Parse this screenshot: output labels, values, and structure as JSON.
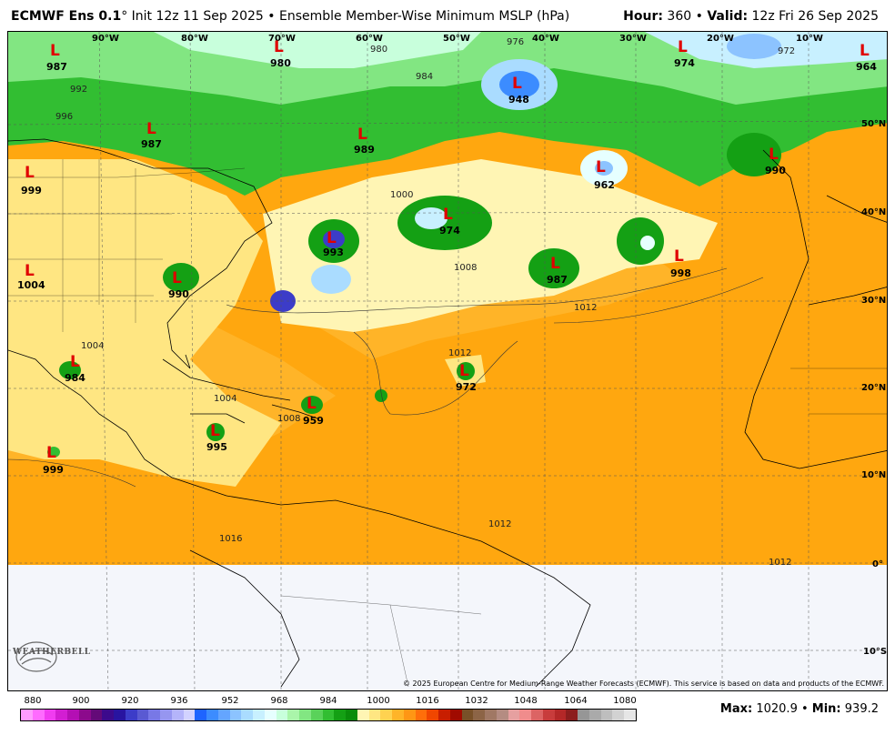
{
  "header": {
    "model": "ECMWF Ens 0.1",
    "init_text": "° Init 12z 11 Sep 2025 • Ensemble Member-Wise Minimum MSLP (hPa)",
    "hour_label": "Hour:",
    "hour_value": " 360 • ",
    "valid_label": "Valid:",
    "valid_value": " 12z Fri 26 Sep 2025"
  },
  "lon_labels": [
    "90°W",
    "80°W",
    "70°W",
    "60°W",
    "50°W",
    "40°W",
    "30°W",
    "20°W",
    "10°W"
  ],
  "lat_labels": [
    "50°N",
    "40°N",
    "30°N",
    "20°N",
    "10°N",
    "0°",
    "10°S"
  ],
  "lows": [
    {
      "label": "L",
      "value": "987"
    },
    {
      "label": "L",
      "value": "980"
    },
    {
      "label": "L",
      "value": "948"
    },
    {
      "label": "L",
      "value": "974"
    },
    {
      "label": "L",
      "value": "964"
    },
    {
      "label": "L",
      "value": "987"
    },
    {
      "label": "L",
      "value": "989"
    },
    {
      "label": "L",
      "value": "999"
    },
    {
      "label": "L",
      "value": "962"
    },
    {
      "label": "L",
      "value": "990"
    },
    {
      "label": "L",
      "value": "974"
    },
    {
      "label": "L",
      "value": "993"
    },
    {
      "label": "L",
      "value": "987"
    },
    {
      "label": "L",
      "value": "998"
    },
    {
      "label": "L",
      "value": "1004"
    },
    {
      "label": "L",
      "value": "990"
    },
    {
      "label": "L",
      "value": "984"
    },
    {
      "label": "L",
      "value": "972"
    },
    {
      "label": "L",
      "value": "959"
    },
    {
      "label": "L",
      "value": "995"
    },
    {
      "label": "L",
      "value": "999"
    }
  ],
  "contour_labels": [
    "1012",
    "1012",
    "1012",
    "1012",
    "1008",
    "1008",
    "1004",
    "1004",
    "1000",
    "996",
    "992",
    "984",
    "980",
    "976",
    "972",
    "1016"
  ],
  "copyright": "© 2025 European Centre for Medium-Range Weather Forecasts (ECMWF). This service is based on data and products of the ECMWF.",
  "logo": "WEATHERBELL",
  "colorbar": {
    "ticks": [
      "880",
      "900",
      "920",
      "936",
      "952",
      "968",
      "984",
      "1000",
      "1016",
      "1032",
      "1048",
      "1064",
      "1080"
    ],
    "colors": [
      "#ff9cff",
      "#ff6bff",
      "#f03cf0",
      "#d21ed2",
      "#b40fb4",
      "#8c0a8c",
      "#640a78",
      "#3c0a8c",
      "#2814a0",
      "#3c3cc8",
      "#5a5ad2",
      "#7878e6",
      "#9696f0",
      "#b4b4fa",
      "#d2d2ff",
      "#1e64ff",
      "#3c8cff",
      "#64a5ff",
      "#8cc3ff",
      "#aadcff",
      "#c8f0ff",
      "#e6ffff",
      "#c8ffdc",
      "#aaf5aa",
      "#82e682",
      "#5ad25a",
      "#32be32",
      "#14a014",
      "#0a8c0a",
      "#fff5b4",
      "#ffe682",
      "#ffd250",
      "#ffb428",
      "#ff9614",
      "#ff6e0a",
      "#f04600",
      "#c81e00",
      "#a00a00",
      "#785028",
      "#8c6446",
      "#a07864",
      "#b48c82",
      "#e6a0a0",
      "#f08c8c",
      "#dc6464",
      "#c83c3c",
      "#b42828",
      "#8c1e1e",
      "#969696",
      "#aaaaaa",
      "#bebebe",
      "#d2d2d2",
      "#e6e6e6"
    ]
  },
  "stats": {
    "max_label": "Max:",
    "max_value": " 1020.9",
    "sep": " • ",
    "min_label": "Min:",
    "min_value": " 939.2"
  }
}
